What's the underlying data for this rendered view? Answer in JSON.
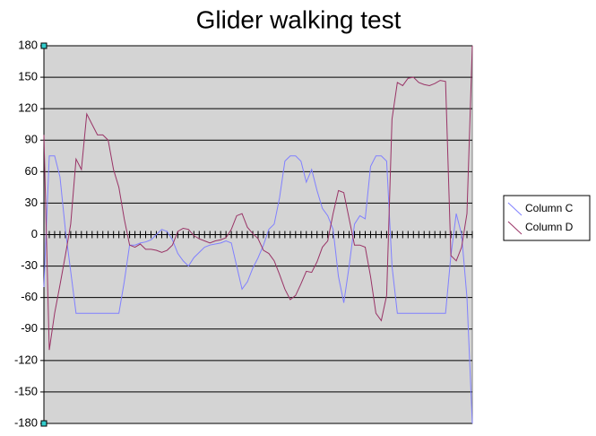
{
  "chart_data": {
    "type": "line",
    "title": "Glider walking test",
    "ylim": [
      -180,
      180
    ],
    "yticks": [
      -180,
      -150,
      -120,
      -90,
      -60,
      -30,
      0,
      30,
      60,
      90,
      120,
      150,
      180
    ],
    "grid": true,
    "legend": "right",
    "series": [
      {
        "name": "Column C",
        "color": "#8080ff",
        "values": [
          -50,
          75,
          75,
          55,
          5,
          -35,
          -75,
          -75,
          -75,
          -75,
          -75,
          -75,
          -75,
          -75,
          -75,
          -45,
          -10,
          -10,
          -8,
          -7,
          -5,
          0,
          5,
          3,
          -5,
          -18,
          -25,
          -30,
          -22,
          -17,
          -12,
          -10,
          -9,
          -8,
          -6,
          -8,
          -30,
          -52,
          -45,
          -32,
          -22,
          -10,
          5,
          10,
          35,
          70,
          75,
          75,
          70,
          50,
          62,
          42,
          25,
          18,
          5,
          -40,
          -65,
          -30,
          10,
          18,
          15,
          65,
          75,
          75,
          70,
          -30,
          -75,
          -75,
          -75,
          -75,
          -75,
          -75,
          -75,
          -75,
          -75,
          -75,
          -20,
          20,
          0,
          -60,
          -180
        ]
      },
      {
        "name": "Column D",
        "color": "#993366",
        "values": [
          95,
          -110,
          -75,
          -48,
          -20,
          10,
          72,
          62,
          115,
          105,
          95,
          95,
          90,
          62,
          45,
          15,
          -10,
          -12,
          -9,
          -14,
          -14,
          -15,
          -17,
          -15,
          -10,
          3,
          6,
          5,
          -1,
          -4,
          -6,
          -8,
          -6,
          -5,
          -3,
          5,
          18,
          20,
          7,
          1,
          -4,
          -15,
          -18,
          -25,
          -38,
          -52,
          -62,
          -58,
          -47,
          -35,
          -36,
          -26,
          -12,
          -6,
          20,
          42,
          40,
          15,
          -10,
          -10,
          -12,
          -40,
          -75,
          -82,
          -58,
          110,
          145,
          142,
          149,
          150,
          145,
          143,
          142,
          144,
          147,
          146,
          -20,
          -25,
          -12,
          20,
          180
        ]
      }
    ]
  }
}
